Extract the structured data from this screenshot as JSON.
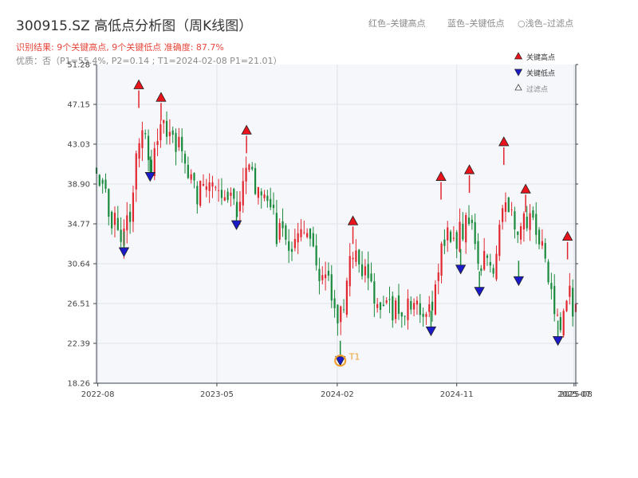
{
  "header": {
    "title": "300915.SZ 高低点分析图（周K线图）",
    "result_line": "识别结果: 9个关键高点, 9个关键低点  准确度: 87.7%",
    "quality_line": "优质：否（P1=55.4%, P2=0.14 ; T1=2024-02-08 P1=21.01）",
    "hint_red": "红色–关键高点",
    "hint_blue": "蓝色–关键低点",
    "hint_faint": "○浅色–过滤点"
  },
  "colors": {
    "up": "#e2262f",
    "down": "#1a8a3c",
    "high_marker": "#e8131b",
    "low_marker": "#1a1ac8",
    "anno": "#f0a030",
    "plot_bg": "#f5f7fb",
    "grid": "#dfe3ea",
    "axis": "#3a3f4a"
  },
  "legend": {
    "items": [
      {
        "label": "关键高点",
        "icon": "red-triangle-up-icon"
      },
      {
        "label": "关键低点",
        "icon": "blue-triangle-down-icon"
      },
      {
        "label": "过滤点",
        "icon": "hollow-triangle-icon"
      }
    ],
    "placement": "top-right"
  },
  "chart_data": {
    "type": "candlestick",
    "x_axis": {
      "type": "date",
      "start": "2022-07-29",
      "end": "2025-08-01",
      "tick_labels": [
        "2022-08",
        "2023-05",
        "2024-02",
        "2024-11",
        "2025-07",
        "2025-08"
      ]
    },
    "y_axis": {
      "range": [
        18.26,
        51.28
      ],
      "tick_labels": [
        "18.26",
        "22.39",
        "26.51",
        "30.64",
        "34.77",
        "38.90",
        "43.03",
        "47.15",
        "51.28"
      ]
    },
    "grid": true,
    "key_highs": [
      {
        "date": "2022-11-03",
        "value": 48.6
      },
      {
        "date": "2022-12-24",
        "value": 47.3
      },
      {
        "date": "2023-07-08",
        "value": 43.9
      },
      {
        "date": "2024-03-08",
        "value": 34.5
      },
      {
        "date": "2024-09-26",
        "value": 39.1
      },
      {
        "date": "2024-11-30",
        "value": 39.8
      },
      {
        "date": "2025-02-17",
        "value": 42.7
      },
      {
        "date": "2025-04-08",
        "value": 37.8
      },
      {
        "date": "2025-07-13",
        "value": 32.9
      }
    ],
    "key_lows": [
      {
        "date": "2022-09-30",
        "value": 32.3
      },
      {
        "date": "2022-11-29",
        "value": 40.1
      },
      {
        "date": "2023-06-15",
        "value": 35.1
      },
      {
        "date": "2024-02-08",
        "value": 21.01
      },
      {
        "date": "2024-09-03",
        "value": 24.1
      },
      {
        "date": "2024-11-10",
        "value": 30.5
      },
      {
        "date": "2024-12-23",
        "value": 28.2
      },
      {
        "date": "2025-03-23",
        "value": 29.3
      },
      {
        "date": "2025-06-21",
        "value": 23.1
      }
    ],
    "annotations": [
      {
        "label": "T1",
        "date": "2024-02-08",
        "value": 21.01
      }
    ],
    "path_anchors": [
      {
        "date": "2022-07-29",
        "close": 40.1
      },
      {
        "date": "2022-08-26",
        "close": 36.6
      },
      {
        "date": "2022-09-30",
        "close": 32.9
      },
      {
        "date": "2022-10-14",
        "close": 36.3
      },
      {
        "date": "2022-11-03",
        "close": 44.5
      },
      {
        "date": "2022-11-29",
        "close": 41.0
      },
      {
        "date": "2022-12-24",
        "close": 44.8
      },
      {
        "date": "2023-02-10",
        "close": 42.3
      },
      {
        "date": "2023-03-10",
        "close": 38.2
      },
      {
        "date": "2023-04-14",
        "close": 38.1
      },
      {
        "date": "2023-05-12",
        "close": 36.9
      },
      {
        "date": "2023-06-15",
        "close": 36.3
      },
      {
        "date": "2023-07-08",
        "close": 40.8
      },
      {
        "date": "2023-08-11",
        "close": 37.9
      },
      {
        "date": "2023-09-15",
        "close": 34.2
      },
      {
        "date": "2023-10-20",
        "close": 33.3
      },
      {
        "date": "2023-11-24",
        "close": 32.3
      },
      {
        "date": "2024-01-05",
        "close": 29.5
      },
      {
        "date": "2024-02-08",
        "close": 24.8
      },
      {
        "date": "2024-03-08",
        "close": 31.5
      },
      {
        "date": "2024-04-19",
        "close": 28.6
      },
      {
        "date": "2024-05-24",
        "close": 26.1
      },
      {
        "date": "2024-07-12",
        "close": 26.4
      },
      {
        "date": "2024-08-16",
        "close": 25.8
      },
      {
        "date": "2024-09-03",
        "close": 26.2
      },
      {
        "date": "2024-09-26",
        "close": 32.4
      },
      {
        "date": "2024-11-10",
        "close": 33.8
      },
      {
        "date": "2024-11-30",
        "close": 35.2
      },
      {
        "date": "2024-12-23",
        "close": 30.4
      },
      {
        "date": "2025-01-24",
        "close": 31.0
      },
      {
        "date": "2025-02-17",
        "close": 37.5
      },
      {
        "date": "2025-03-23",
        "close": 33.1
      },
      {
        "date": "2025-04-08",
        "close": 35.6
      },
      {
        "date": "2025-05-16",
        "close": 33.3
      },
      {
        "date": "2025-06-21",
        "close": 24.6
      },
      {
        "date": "2025-07-13",
        "close": 27.0
      },
      {
        "date": "2025-08-01",
        "close": 26.2
      }
    ]
  }
}
